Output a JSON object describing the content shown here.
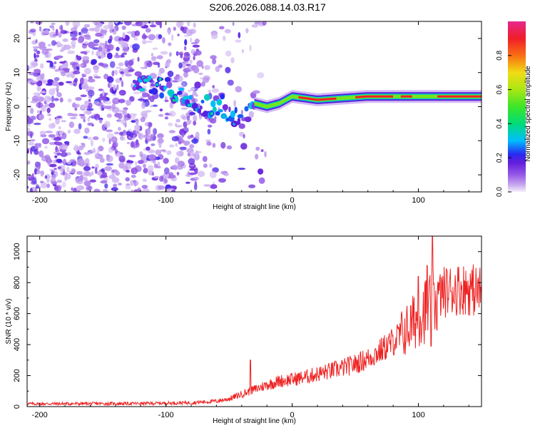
{
  "title": "S206.2026.088.14.03.R17",
  "chart_data": [
    {
      "type": "heatmap",
      "xlabel": "Height of straight line (km)",
      "ylabel": "Frequency (Hz)",
      "xlim": [
        -210,
        150
      ],
      "ylim": [
        -25,
        25
      ],
      "xticks": [
        -200,
        -100,
        0,
        100
      ],
      "yticks": [
        -20,
        -10,
        0,
        10,
        20
      ],
      "colorbar": {
        "label": "Normalized spectral amplitude",
        "range": [
          0.0,
          1.0
        ],
        "ticks": [
          0.0,
          0.2,
          0.4,
          0.6,
          0.8
        ],
        "tick_labels": [
          "0.0",
          "0.2",
          "0.4",
          "0.6",
          "0.8"
        ]
      },
      "ridge": {
        "description_points_km_hz": [
          [
            -120,
            7
          ],
          [
            -100,
            6
          ],
          [
            -85,
            3
          ],
          [
            -70,
            0
          ],
          [
            -55,
            0
          ],
          [
            -40,
            -4
          ],
          [
            -30,
            1
          ],
          [
            -20,
            0
          ],
          [
            -10,
            1
          ],
          [
            0,
            3
          ],
          [
            20,
            2
          ],
          [
            60,
            3
          ],
          [
            100,
            3
          ],
          [
            150,
            3
          ]
        ]
      }
    },
    {
      "type": "line",
      "xlabel": "Height of straight line (km)",
      "ylabel": "SNR (10 * v/v)",
      "xlim": [
        -210,
        150
      ],
      "ylim": [
        0,
        1100
      ],
      "xticks": [
        -200,
        -100,
        0,
        100
      ],
      "yticks": [
        0,
        200,
        400,
        600,
        800,
        1000
      ],
      "series": [
        {
          "name": "SNR",
          "color": "#ee2222",
          "trend": {
            "x": [
              -210,
              -120,
              -80,
              -60,
              -50,
              -40,
              -30,
              -20,
              -10,
              0,
              10,
              20,
              30,
              40,
              50,
              60,
              70,
              80,
              90,
              95,
              100,
              105,
              110,
              115,
              120,
              130,
              140,
              150
            ],
            "y": [
              18,
              20,
              25,
              35,
              50,
              80,
              110,
              140,
              165,
              175,
              190,
              210,
              230,
              250,
              275,
              310,
              360,
              420,
              490,
              530,
              590,
              620,
              650,
              700,
              740,
              760,
              760,
              740
            ]
          },
          "spikes": [
            {
              "x": -33,
              "y": 300
            },
            {
              "x": 100,
              "y": 840
            },
            {
              "x": 107,
              "y": 910
            },
            {
              "x": 111,
              "y": 1100
            },
            {
              "x": 110,
              "y": 390
            }
          ]
        }
      ]
    }
  ]
}
